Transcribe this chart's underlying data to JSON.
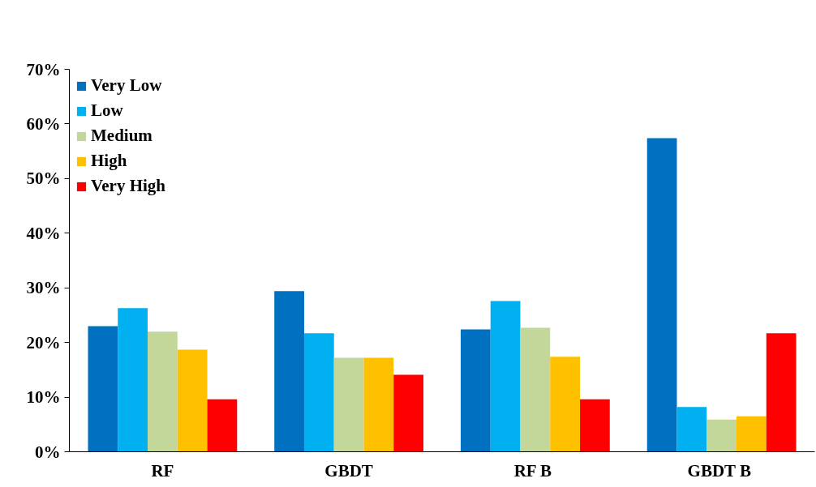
{
  "chart_data": {
    "type": "bar",
    "categories": [
      "RF",
      "GBDT",
      "RF  B",
      "GBDT  B"
    ],
    "series": [
      {
        "name": "Very Low",
        "color": "#0070c0",
        "values": [
          23.0,
          29.4,
          22.4,
          57.4
        ]
      },
      {
        "name": "Low",
        "color": "#00b0f0",
        "values": [
          26.3,
          21.7,
          27.6,
          8.2
        ]
      },
      {
        "name": "Medium",
        "color": "#c4d79b",
        "values": [
          22.0,
          17.2,
          22.7,
          5.9
        ]
      },
      {
        "name": "High",
        "color": "#ffc000",
        "values": [
          18.7,
          17.2,
          17.4,
          6.5
        ]
      },
      {
        "name": "Very High",
        "color": "#ff0000",
        "values": [
          9.6,
          14.1,
          9.6,
          21.7
        ]
      }
    ],
    "ylim": [
      0,
      70
    ],
    "yticks": [
      {
        "value": 0,
        "label": "0%"
      },
      {
        "value": 10,
        "label": "10%"
      },
      {
        "value": 20,
        "label": "20%"
      },
      {
        "value": 30,
        "label": "30%"
      },
      {
        "value": 40,
        "label": "40%"
      },
      {
        "value": 50,
        "label": "50%"
      },
      {
        "value": 60,
        "label": "60%"
      },
      {
        "value": 70,
        "label": "70%"
      }
    ],
    "grid": false,
    "legend": "top left"
  }
}
